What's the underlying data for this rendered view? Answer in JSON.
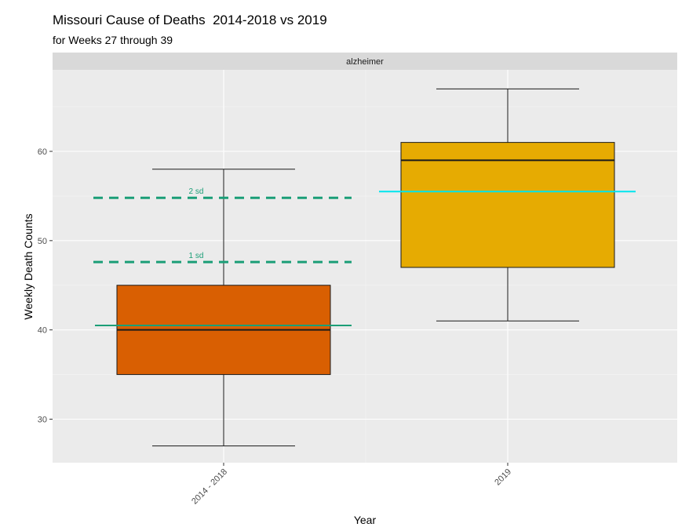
{
  "chart_data": {
    "type": "box",
    "title": "Missouri Cause of Deaths  2014-2018 vs 2019",
    "subtitle": "for Weeks 27 through 39",
    "facet_label": "alzheimer",
    "xlabel": "Year",
    "ylabel": "Weekly Death Counts",
    "ylim": [
      25,
      69
    ],
    "yticks": [
      30,
      40,
      50,
      60
    ],
    "grid": true,
    "categories": [
      "2014 - 2018",
      "2019"
    ],
    "boxes": [
      {
        "category": "2014 - 2018",
        "min": 27,
        "q1": 35,
        "median": 40,
        "q3": 45,
        "max": 58,
        "color": "#D95F02"
      },
      {
        "category": "2019",
        "min": 41,
        "q1": 47,
        "median": 59,
        "q3": 61,
        "max": 67,
        "color": "#E6AB02"
      }
    ],
    "reference_lines": [
      {
        "label": "",
        "value": 40.5,
        "style": "solid",
        "color": "#1B9E77",
        "over": "2014 - 2018"
      },
      {
        "label": "1 sd",
        "value": 47.6,
        "style": "dashed",
        "color": "#1B9E77",
        "over": "2014 - 2018"
      },
      {
        "label": "2 sd",
        "value": 54.8,
        "style": "dashed",
        "color": "#1B9E77",
        "over": "2014 - 2018"
      },
      {
        "label": "",
        "value": 55.5,
        "style": "solid",
        "color": "#00E5EE",
        "over": "2019"
      }
    ]
  }
}
